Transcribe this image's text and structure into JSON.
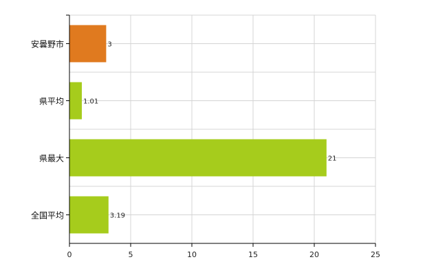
{
  "chart_data": {
    "type": "bar",
    "orientation": "horizontal",
    "categories": [
      "安曇野市",
      "県平均",
      "県最大",
      "全国平均"
    ],
    "values": [
      3,
      1.01,
      21,
      3.19
    ],
    "value_labels": [
      "3",
      "1.01",
      "21",
      "3.19"
    ],
    "colors": [
      "#e07a1f",
      "#a6cc1c",
      "#a6cc1c",
      "#a6cc1c"
    ],
    "xlim": [
      0,
      25
    ],
    "xticks": [
      0,
      5,
      10,
      15,
      20,
      25
    ],
    "grid": true,
    "legend": "none"
  }
}
